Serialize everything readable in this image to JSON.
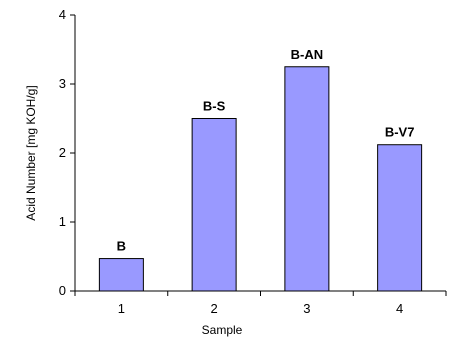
{
  "chart_data": {
    "type": "bar",
    "categories": [
      "1",
      "2",
      "3",
      "4"
    ],
    "values": [
      0.47,
      2.5,
      3.25,
      2.12
    ],
    "data_labels": [
      "B",
      "B-S",
      "B-AN",
      "B-V7"
    ],
    "xlabel": "Sample",
    "ylabel": "Acid Number  [mg KOH/g]",
    "ylim": [
      0,
      4
    ],
    "yticks": [
      "0",
      "1",
      "2",
      "3",
      "4"
    ],
    "grid": false,
    "bar_color": "#9999ff"
  }
}
